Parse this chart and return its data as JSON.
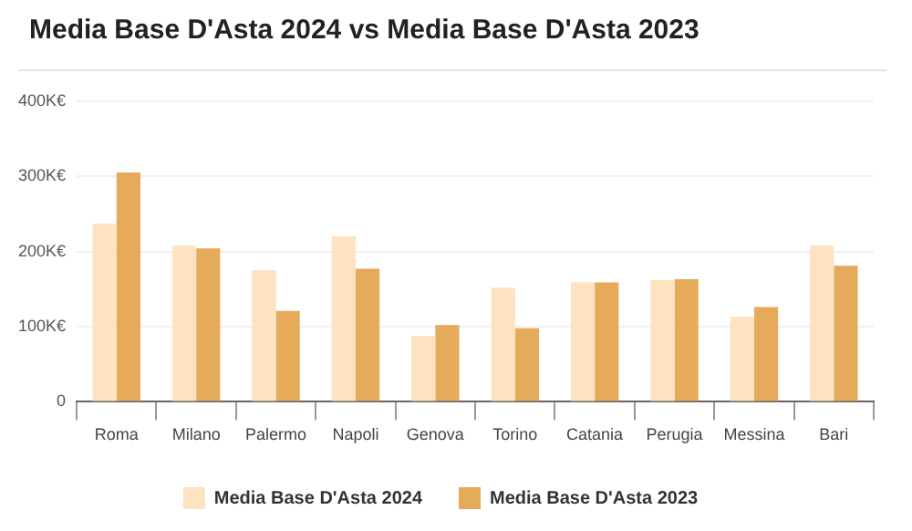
{
  "chart_data": {
    "type": "bar",
    "title": "Media Base D'Asta 2024 vs Media Base D'Asta 2023",
    "categories": [
      "Roma",
      "Milano",
      "Palermo",
      "Napoli",
      "Genova",
      "Torino",
      "Catania",
      "Perugia",
      "Messina",
      "Bari"
    ],
    "series": [
      {
        "name": "Media Base D'Asta 2024",
        "color": "#fde3c0",
        "values": [
          237,
          208,
          175,
          220,
          88,
          152,
          159,
          162,
          113,
          208
        ]
      },
      {
        "name": "Media Base D'Asta 2023",
        "color": "#e5aa5a",
        "values": [
          305,
          204,
          121,
          177,
          102,
          98,
          159,
          163,
          126,
          181
        ]
      }
    ],
    "ylim": [
      0,
      400
    ],
    "yticks": [
      0,
      {
        "value": 100,
        "label": "100K€"
      },
      {
        "value": 200,
        "label": "200K€"
      },
      {
        "value": 300,
        "label": "300K€"
      },
      {
        "value": 400,
        "label": "400K€"
      }
    ],
    "grid": "y",
    "legend": "bottom"
  }
}
